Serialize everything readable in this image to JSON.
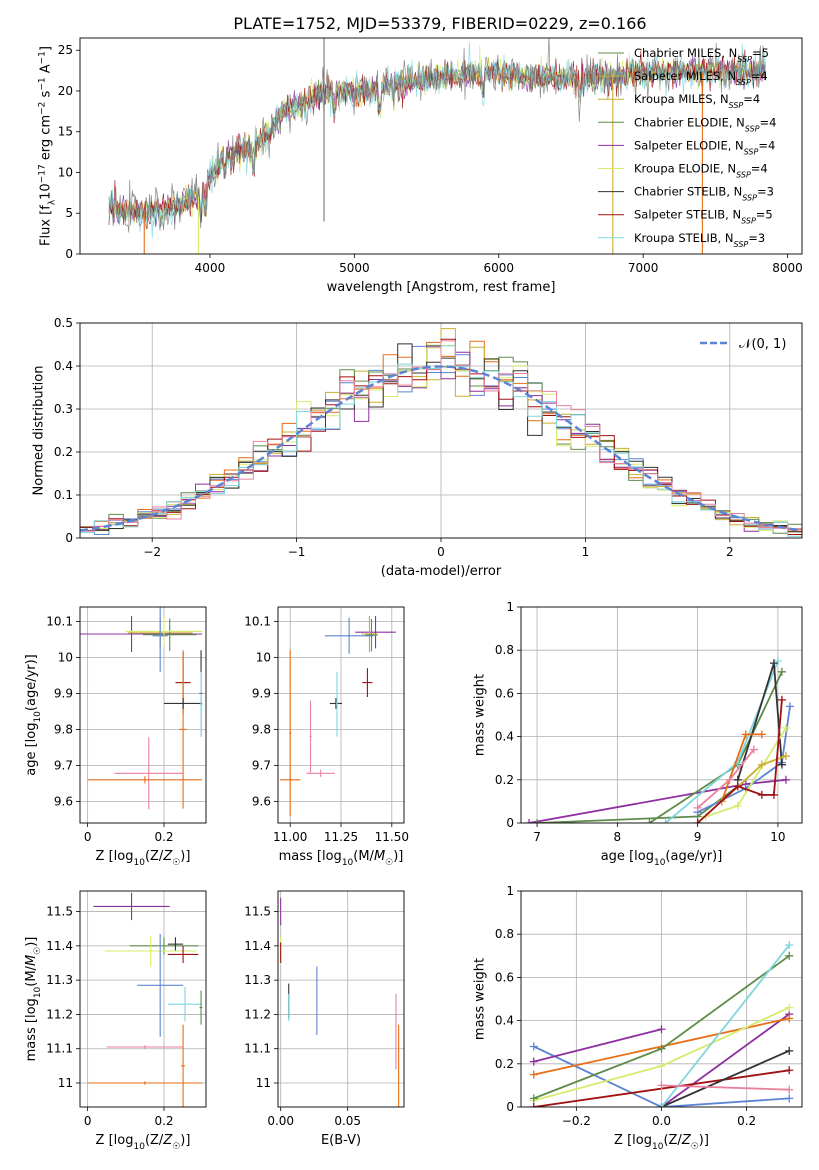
{
  "figure": {
    "title": "PLATE=1752, MJD=53379, FIBERID=0229, z=0.166"
  },
  "colors": {
    "Chabrier MILES": "#5b84d3",
    "Salpeter MILES": "#e76d16",
    "Kroupa MILES": "#c8b02e",
    "Chabrier ELODIE": "#5e8c4a",
    "Salpeter ELODIE": "#8e2fa0",
    "Kroupa ELODIE": "#d6ec6e",
    "Chabrier STELIB": "#333333",
    "Salpeter STELIB": "#a01010",
    "Kroupa STELIB": "#7fd6de",
    "pink": "#e8829c",
    "normal": "#5b84d3"
  },
  "chart_data": [
    {
      "id": "spectrum",
      "type": "line",
      "xlabel": "wavelength [Angstrom, rest frame]",
      "ylabel": "Flux [f_λ10^-17 erg cm^-2 s^-1 A^-1]",
      "xlim": [
        3100,
        8100
      ],
      "ylim": [
        0,
        26.5
      ],
      "xticks": [
        4000,
        5000,
        6000,
        7000,
        8000
      ],
      "yticks": [
        0,
        5,
        10,
        15,
        20,
        25
      ],
      "grid": false,
      "legend_position": "top-right",
      "legend": [
        {
          "label": "Chabrier MILES, N",
          "sub": "SSP",
          "tail": "=5",
          "color": "#5e8c4a"
        },
        {
          "label": "Salpeter MILES, N",
          "sub": "SSP",
          "tail": "=4",
          "color": "#c8b02e"
        },
        {
          "label": "Kroupa MILES, N",
          "sub": "SSP",
          "tail": "=4",
          "color": "#c8b02e"
        },
        {
          "label": "Chabrier ELODIE, N",
          "sub": "SSP",
          "tail": "=4",
          "color": "#5e8c4a"
        },
        {
          "label": "Salpeter ELODIE, N",
          "sub": "SSP",
          "tail": "=4",
          "color": "#8e2fa0"
        },
        {
          "label": "Kroupa ELODIE, N",
          "sub": "SSP",
          "tail": "=4",
          "color": "#d6ec6e"
        },
        {
          "label": "Chabrier STELIB, N",
          "sub": "SSP",
          "tail": "=3",
          "color": "#333333"
        },
        {
          "label": "Salpeter STELIB, N",
          "sub": "SSP",
          "tail": "=5",
          "color": "#a01010"
        },
        {
          "label": "Kroupa STELIB, N",
          "sub": "SSP",
          "tail": "=3",
          "color": "#7fd6de"
        }
      ],
      "continuum": [
        [
          3300,
          5.6
        ],
        [
          3500,
          5.0
        ],
        [
          3650,
          5.2
        ],
        [
          3800,
          6.0
        ],
        [
          3950,
          7.5
        ],
        [
          4000,
          9.5
        ],
        [
          4100,
          11.8
        ],
        [
          4300,
          13.2
        ],
        [
          4400,
          14.5
        ],
        [
          4500,
          17.5
        ],
        [
          4700,
          19.0
        ],
        [
          4900,
          20.2
        ],
        [
          5100,
          20.0
        ],
        [
          5300,
          21.0
        ],
        [
          5600,
          21.6
        ],
        [
          5900,
          22.4
        ],
        [
          6200,
          21.6
        ],
        [
          6500,
          21.6
        ],
        [
          6800,
          21.8
        ],
        [
          7000,
          22.2
        ],
        [
          7300,
          22.4
        ],
        [
          7500,
          22.5
        ],
        [
          7800,
          22.3
        ]
      ],
      "series_colors": [
        "#5b84d3",
        "#e76d16",
        "#c8b02e",
        "#5e8c4a",
        "#8e2fa0",
        "#d6ec6e",
        "#a01010",
        "#7fd6de",
        "#777777"
      ],
      "spikes": [
        {
          "x": 3545,
          "y0": 0,
          "y1": 5.2,
          "color": "#e76d16"
        },
        {
          "x": 3920,
          "y0": 0,
          "y1": 7.0,
          "color": "#d6ec6e"
        },
        {
          "x": 4790,
          "y0": 4,
          "y1": 26.5,
          "color": "#777777"
        },
        {
          "x": 6790,
          "y0": 0,
          "y1": 21.5,
          "color": "#c8b02e"
        },
        {
          "x": 7410,
          "y0": 0,
          "y1": 22.2,
          "color": "#e76d16"
        }
      ]
    },
    {
      "id": "residuals",
      "type": "step",
      "xlabel": "(data-model)/error",
      "ylabel": "Normed distribution",
      "xlim": [
        -2.5,
        2.5
      ],
      "ylim": [
        0,
        0.5
      ],
      "xticks": [
        -2,
        -1,
        0,
        1,
        2
      ],
      "xtick_labels": [
        "−2",
        "−1",
        "0",
        "1",
        "2"
      ],
      "yticks": [
        0.0,
        0.1,
        0.2,
        0.3,
        0.4,
        0.5
      ],
      "grid": true,
      "legend_label": "𝒩(0, 1)",
      "legend_position": "top-right",
      "bin_width": 0.1,
      "histogram_colors": [
        "#5b84d3",
        "#e76d16",
        "#c8b02e",
        "#5e8c4a",
        "#8e2fa0",
        "#d6ec6e",
        "#333333",
        "#a01010",
        "#7fd6de",
        "#e8829c"
      ]
    },
    {
      "id": "age_vs_Z",
      "type": "errorbar",
      "xlabel": "Z [log10(Z/Z☉)]",
      "ylabel": "age  [log10(age/yr)]",
      "xlim": [
        -0.02,
        0.31
      ],
      "ylim": [
        9.54,
        10.14
      ],
      "xticks": [
        0.0,
        0.2
      ],
      "yticks": [
        9.6,
        9.7,
        9.8,
        9.9,
        10.0,
        10.1
      ],
      "grid": true,
      "points": [
        {
          "x": 0.115,
          "xerr": 0.185,
          "y": 10.065,
          "yerr": 0.05,
          "color": "#8e2fa0"
        },
        {
          "x": 0.19,
          "xerr": 0.085,
          "y": 10.068,
          "yerr": 0.045,
          "color": "#c8b02e"
        },
        {
          "x": 0.215,
          "xerr": 0.07,
          "y": 10.063,
          "yerr": 0.045,
          "color": "#5e8c4a"
        },
        {
          "x": 0.2,
          "xerr": 0.1,
          "y": 10.072,
          "yerr": 0.04,
          "color": "#d6ec6e"
        },
        {
          "x": 0.19,
          "xerr": 0.02,
          "y": 10.06,
          "yerr": 0.1,
          "color": "#5b84d3"
        },
        {
          "x": 0.25,
          "xerr": 0.02,
          "y": 9.93,
          "yerr": 0.085,
          "color": "#a01010"
        },
        {
          "x": 0.25,
          "xerr": 0.01,
          "y": 9.8,
          "yerr": 0.22,
          "color": "#e76d16"
        },
        {
          "x": 0.25,
          "xerr": 0.05,
          "y": 9.872,
          "yerr": 0.015,
          "color": "#333333"
        },
        {
          "x": 0.297,
          "xerr": 0.004,
          "y": 9.9,
          "yerr": 0.12,
          "color": "#333333"
        },
        {
          "x": 0.297,
          "xerr": 0.004,
          "y": 9.87,
          "yerr": 0.09,
          "color": "#7fd6de"
        },
        {
          "x": 0.16,
          "xerr": 0.09,
          "y": 9.678,
          "yerr": 0.1,
          "color": "#e8829c"
        },
        {
          "x": 0.15,
          "xerr": 0.15,
          "y": 9.66,
          "yerr": 0.01,
          "color": "#e76d16"
        }
      ]
    },
    {
      "id": "age_vs_mass",
      "type": "errorbar",
      "xlabel": "mass [log10(M/M☉)]",
      "ylabel": "",
      "xlim": [
        10.94,
        11.56
      ],
      "ylim": [
        9.54,
        10.14
      ],
      "xticks": [
        11.0,
        11.25,
        11.5
      ],
      "xtick_labels": [
        "11.00",
        "11.25",
        "11.50"
      ],
      "yticks": [
        9.6,
        9.7,
        9.8,
        9.9,
        10.0,
        10.1
      ],
      "grid": true,
      "points": [
        {
          "x": 11.42,
          "xerr": 0.1,
          "y": 10.07,
          "yerr": 0.045,
          "color": "#8e2fa0"
        },
        {
          "x": 11.39,
          "xerr": 0.04,
          "y": 10.065,
          "yerr": 0.05,
          "color": "#c8b02e"
        },
        {
          "x": 11.4,
          "xerr": 0.03,
          "y": 10.062,
          "yerr": 0.045,
          "color": "#5e8c4a"
        },
        {
          "x": 11.29,
          "xerr": 0.12,
          "y": 10.06,
          "yerr": 0.05,
          "color": "#5b84d3"
        },
        {
          "x": 11.38,
          "xerr": 0.025,
          "y": 9.93,
          "yerr": 0.04,
          "color": "#a01010"
        },
        {
          "x": 11.225,
          "xerr": 0.03,
          "y": 9.872,
          "yerr": 0.015,
          "color": "#333333"
        },
        {
          "x": 11.23,
          "xerr": 0.005,
          "y": 9.87,
          "yerr": 0.09,
          "color": "#7fd6de"
        },
        {
          "x": 11.15,
          "xerr": 0.07,
          "y": 9.678,
          "yerr": 0.01,
          "color": "#e8829c"
        },
        {
          "x": 11.1,
          "xerr": 0.005,
          "y": 9.78,
          "yerr": 0.1,
          "color": "#e8829c"
        },
        {
          "x": 11.0,
          "xerr": 0.005,
          "y": 9.79,
          "yerr": 0.23,
          "color": "#e76d16"
        },
        {
          "x": 11.0,
          "xerr": 0.05,
          "y": 9.66,
          "yerr": 0.005,
          "color": "#e76d16"
        }
      ]
    },
    {
      "id": "massweight_vs_age",
      "type": "line",
      "xlabel": "age  [log10(age/yr)]",
      "ylabel": "mass weight",
      "xlim": [
        6.8,
        10.3
      ],
      "ylim": [
        0,
        1.0
      ],
      "xticks": [
        7,
        8,
        9,
        10
      ],
      "yticks": [
        0.0,
        0.2,
        0.4,
        0.6,
        0.8,
        1.0
      ],
      "grid": true,
      "series": [
        {
          "color": "#8e2fa0",
          "x": [
            6.9,
            9.6,
            10.1
          ],
          "y": [
            0.0,
            0.18,
            0.2
          ]
        },
        {
          "color": "#5e8c4a",
          "x": [
            8.4,
            9.5,
            10.05
          ],
          "y": [
            0.0,
            0.27,
            0.7
          ]
        },
        {
          "color": "#5e8c4a",
          "x": [
            7.0,
            9.0,
            9.5
          ],
          "y": [
            0.0,
            0.03,
            0.17
          ]
        },
        {
          "color": "#5b84d3",
          "x": [
            9.0,
            9.6,
            10.05,
            10.15
          ],
          "y": [
            0.05,
            0.16,
            0.28,
            0.54
          ]
        },
        {
          "color": "#7fd6de",
          "x": [
            8.6,
            9.5,
            10.0
          ],
          "y": [
            0.0,
            0.28,
            0.75
          ]
        },
        {
          "color": "#333333",
          "x": [
            9.5,
            9.95,
            10.05
          ],
          "y": [
            0.2,
            0.74,
            0.27
          ]
        },
        {
          "color": "#e76d16",
          "x": [
            9.3,
            9.6,
            9.8
          ],
          "y": [
            0.1,
            0.41,
            0.41
          ]
        },
        {
          "color": "#e8829c",
          "x": [
            9.0,
            9.4,
            9.7
          ],
          "y": [
            0.07,
            0.2,
            0.34
          ]
        },
        {
          "color": "#d6ec6e",
          "x": [
            9.1,
            9.5,
            10.1
          ],
          "y": [
            0.03,
            0.08,
            0.44
          ]
        },
        {
          "color": "#c8b02e",
          "x": [
            9.3,
            9.8,
            10.1
          ],
          "y": [
            0.1,
            0.27,
            0.31
          ]
        },
        {
          "color": "#a01010",
          "x": [
            9.0,
            9.5,
            9.8,
            9.95,
            10.05
          ],
          "y": [
            0.0,
            0.17,
            0.13,
            0.13,
            0.57
          ]
        }
      ]
    },
    {
      "id": "mass_vs_Z",
      "type": "errorbar",
      "xlabel": "Z [log10(Z/Z☉)]",
      "ylabel": "mass [log10(M/M☉)]",
      "xlim": [
        -0.02,
        0.31
      ],
      "ylim": [
        10.93,
        11.56
      ],
      "xticks": [
        0.0,
        0.2
      ],
      "yticks": [
        11.0,
        11.1,
        11.2,
        11.3,
        11.4,
        11.5
      ],
      "grid": true,
      "points": [
        {
          "x": 0.115,
          "xerr": 0.1,
          "y": 11.515,
          "yerr": 0.04,
          "color": "#8e2fa0"
        },
        {
          "x": 0.2,
          "xerr": 0.09,
          "y": 11.4,
          "yerr": 0.025,
          "color": "#5e8c4a"
        },
        {
          "x": 0.23,
          "xerr": 0.02,
          "y": 11.405,
          "yerr": 0.02,
          "color": "#333333"
        },
        {
          "x": 0.165,
          "xerr": 0.12,
          "y": 11.385,
          "yerr": 0.045,
          "color": "#d6ec6e"
        },
        {
          "x": 0.25,
          "xerr": 0.04,
          "y": 11.375,
          "yerr": 0.025,
          "color": "#a01010"
        },
        {
          "x": 0.19,
          "xerr": 0.06,
          "y": 11.285,
          "yerr": 0.15,
          "color": "#5b84d3"
        },
        {
          "x": 0.255,
          "xerr": 0.045,
          "y": 11.23,
          "yerr": 0.05,
          "color": "#7fd6de"
        },
        {
          "x": 0.297,
          "xerr": 0.004,
          "y": 11.22,
          "yerr": 0.05,
          "color": "#5e8c4a"
        },
        {
          "x": 0.15,
          "xerr": 0.1,
          "y": 11.105,
          "yerr": 0.005,
          "color": "#e8829c"
        },
        {
          "x": 0.25,
          "xerr": 0.005,
          "y": 11.05,
          "yerr": 0.12,
          "color": "#e76d16"
        },
        {
          "x": 0.15,
          "xerr": 0.15,
          "y": 11.0,
          "yerr": 0.005,
          "color": "#e76d16"
        }
      ]
    },
    {
      "id": "mass_vs_ebv",
      "type": "errorbar",
      "xlabel": "E(B-V)",
      "ylabel": "",
      "xlim": [
        -0.002,
        0.092
      ],
      "ylim": [
        10.93,
        11.56
      ],
      "xticks": [
        0.0,
        0.05
      ],
      "xtick_labels": [
        "0.00",
        "0.05"
      ],
      "yticks": [
        11.0,
        11.1,
        11.2,
        11.3,
        11.4,
        11.5
      ],
      "grid": true,
      "points": [
        {
          "x": 0.0,
          "xerr": 0.0,
          "y": 11.5,
          "yerr": 0.04,
          "color": "#8e2fa0"
        },
        {
          "x": 0.0,
          "xerr": 0.0,
          "y": 11.385,
          "yerr": 0.04,
          "color": "#d6ec6e"
        },
        {
          "x": 0.0,
          "xerr": 0.0,
          "y": 11.38,
          "yerr": 0.03,
          "color": "#a01010"
        },
        {
          "x": 0.006,
          "xerr": 0.0,
          "y": 11.24,
          "yerr": 0.05,
          "color": "#333333"
        },
        {
          "x": 0.006,
          "xerr": 0.0,
          "y": 11.22,
          "yerr": 0.04,
          "color": "#7fd6de"
        },
        {
          "x": 0.027,
          "xerr": 0.0,
          "y": 11.24,
          "yerr": 0.1,
          "color": "#5b84d3"
        },
        {
          "x": 0.086,
          "xerr": 0.0,
          "y": 11.15,
          "yerr": 0.11,
          "color": "#e8829c"
        },
        {
          "x": 0.088,
          "xerr": 0.0,
          "y": 11.05,
          "yerr": 0.12,
          "color": "#e76d16"
        }
      ]
    },
    {
      "id": "massweight_vs_Z",
      "type": "line",
      "xlabel": "Z [log10(Z/Z☉)]",
      "ylabel": "mass weight",
      "xlim": [
        -0.33,
        0.33
      ],
      "ylim": [
        0,
        1.0
      ],
      "xticks": [
        -0.2,
        0.0,
        0.2
      ],
      "xtick_labels": [
        "−0.2",
        "0.0",
        "0.2"
      ],
      "yticks": [
        0.0,
        0.2,
        0.4,
        0.6,
        0.8,
        1.0
      ],
      "grid": true,
      "series": [
        {
          "color": "#5b84d3",
          "x": [
            -0.3,
            0.0,
            0.3
          ],
          "y": [
            0.28,
            0.0,
            0.04
          ]
        },
        {
          "color": "#8e2fa0",
          "x": [
            -0.3,
            0.0
          ],
          "y": [
            0.21,
            0.36
          ]
        },
        {
          "color": "#8e2fa0",
          "x": [
            0.0,
            0.3
          ],
          "y": [
            0.0,
            0.43
          ]
        },
        {
          "color": "#e76d16",
          "x": [
            -0.3,
            0.3
          ],
          "y": [
            0.15,
            0.41
          ]
        },
        {
          "color": "#d6ec6e",
          "x": [
            -0.3,
            0.0,
            0.3
          ],
          "y": [
            0.03,
            0.19,
            0.46
          ]
        },
        {
          "color": "#5e8c4a",
          "x": [
            -0.3,
            0.0,
            0.3
          ],
          "y": [
            0.04,
            0.27,
            0.7
          ]
        },
        {
          "color": "#a01010",
          "x": [
            -0.3,
            0.3
          ],
          "y": [
            0.0,
            0.17
          ]
        },
        {
          "color": "#333333",
          "x": [
            0.0,
            0.3
          ],
          "y": [
            0.0,
            0.26
          ]
        },
        {
          "color": "#7fd6de",
          "x": [
            0.0,
            0.3
          ],
          "y": [
            0.0,
            0.75
          ]
        },
        {
          "color": "#e8829c",
          "x": [
            0.0,
            0.3
          ],
          "y": [
            0.1,
            0.08
          ]
        }
      ]
    }
  ]
}
